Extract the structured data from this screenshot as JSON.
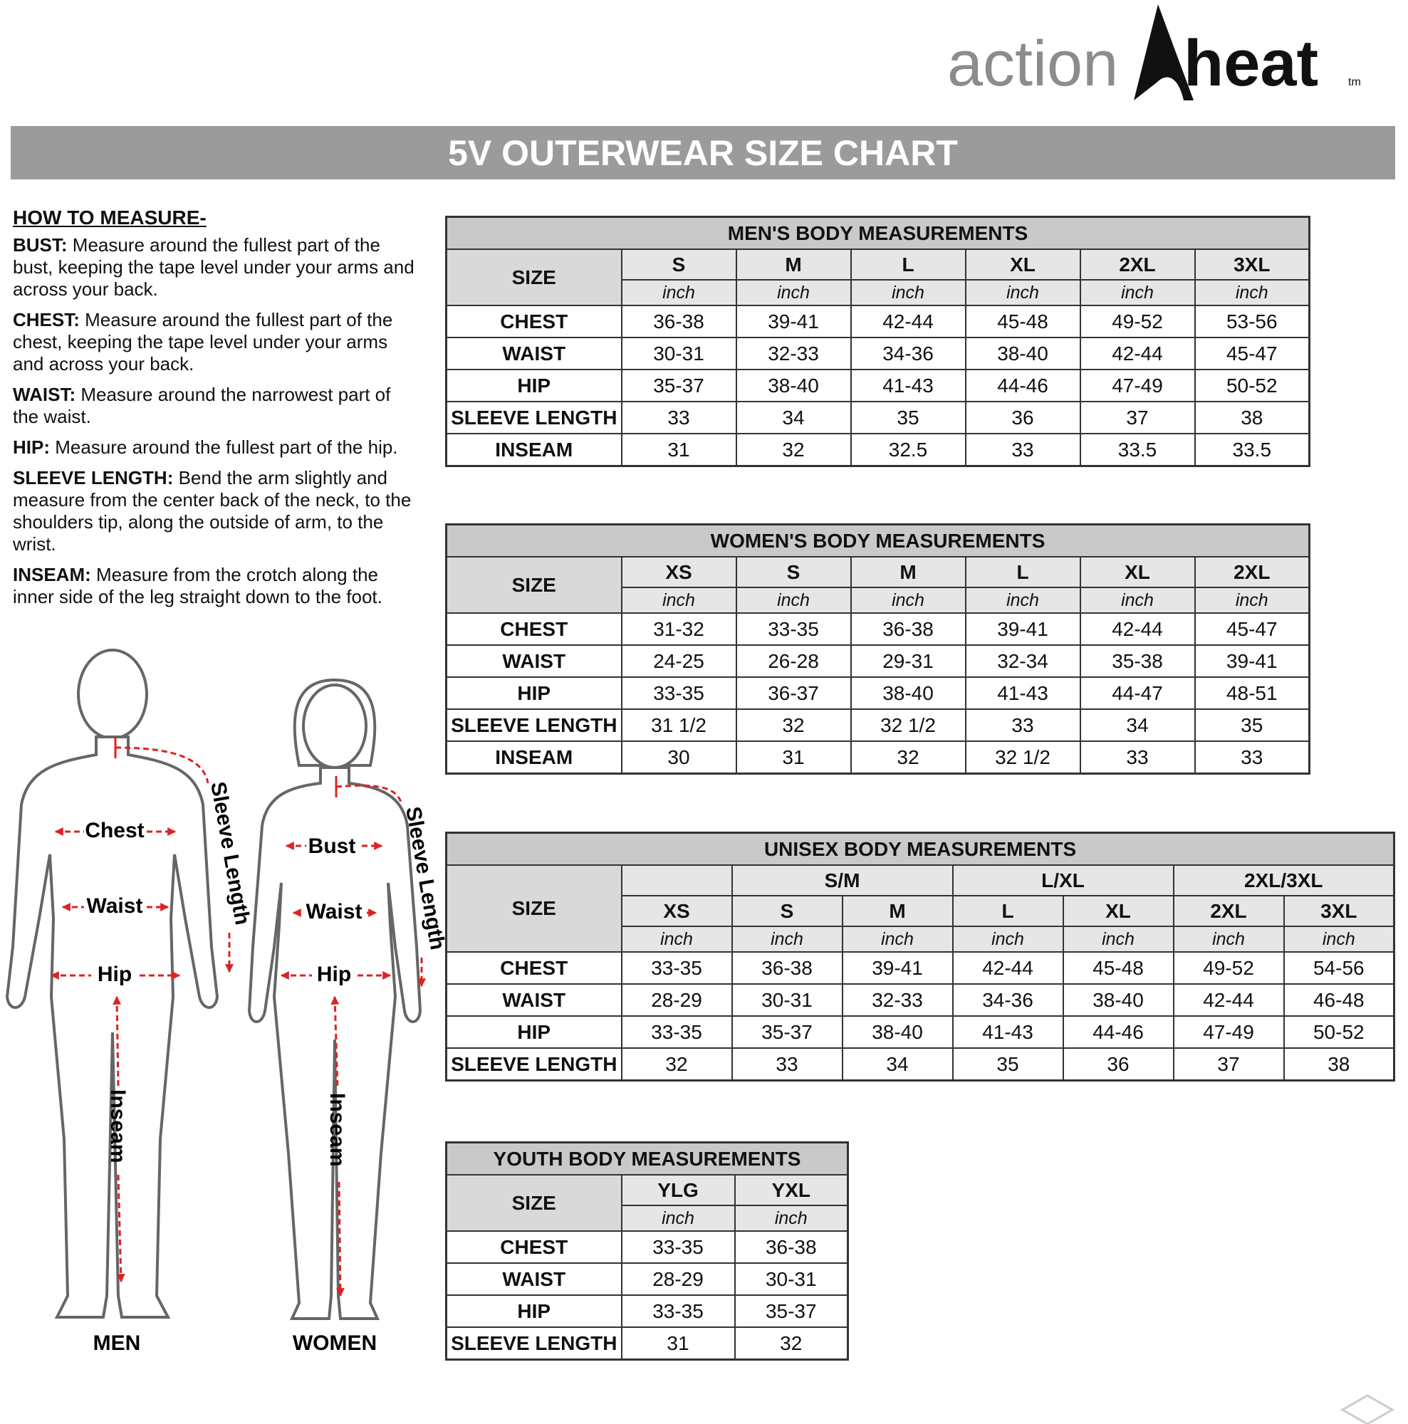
{
  "header": {
    "brand_left": "action",
    "brand_right": "heat",
    "trademark": "tm",
    "title": "5V OUTERWEAR SIZE CHART"
  },
  "measure": {
    "heading": "HOW TO MEASURE-",
    "items": [
      {
        "term": "BUST:",
        "text": "Measure around the fullest part of the bust, keeping the tape level under your arms and across your back."
      },
      {
        "term": "CHEST:",
        "text": "Measure around the fullest part of the chest, keeping the tape level under your arms and across your back."
      },
      {
        "term": "WAIST:",
        "text": "Measure around the narrowest part of the waist."
      },
      {
        "term": "HIP:",
        "text": "Measure around the fullest part of the hip."
      },
      {
        "term": "SLEEVE LENGTH:",
        "text": "Bend the arm slightly and measure from the center back of the neck, to the shoulders tip, along the outside of arm, to the wrist."
      },
      {
        "term": "INSEAM:",
        "text": "Measure from the crotch along the inner side of the leg straight down to the foot."
      }
    ]
  },
  "figures": {
    "men": {
      "caption": "MEN",
      "labels": {
        "chest": "Chest",
        "waist": "Waist",
        "hip": "Hip",
        "sleeve": "Sleeve Length",
        "inseam": "Inseam"
      }
    },
    "women": {
      "caption": "WOMEN",
      "labels": {
        "bust": "Bust",
        "waist": "Waist",
        "hip": "Hip",
        "sleeve": "Sleeve Length",
        "inseam": "Inseam"
      }
    }
  },
  "tables": {
    "men": {
      "title": "MEN'S BODY MEASUREMENTS",
      "size_label": "SIZE",
      "unit": "inch",
      "sizes": [
        "S",
        "M",
        "L",
        "XL",
        "2XL",
        "3XL"
      ],
      "rows": [
        {
          "label": "CHEST",
          "values": [
            "36-38",
            "39-41",
            "42-44",
            "45-48",
            "49-52",
            "53-56"
          ]
        },
        {
          "label": "WAIST",
          "values": [
            "30-31",
            "32-33",
            "34-36",
            "38-40",
            "42-44",
            "45-47"
          ]
        },
        {
          "label": "HIP",
          "values": [
            "35-37",
            "38-40",
            "41-43",
            "44-46",
            "47-49",
            "50-52"
          ]
        },
        {
          "label": "SLEEVE LENGTH",
          "values": [
            "33",
            "34",
            "35",
            "36",
            "37",
            "38"
          ]
        },
        {
          "label": "INSEAM",
          "values": [
            "31",
            "32",
            "32.5",
            "33",
            "33.5",
            "33.5"
          ]
        }
      ]
    },
    "women": {
      "title": "WOMEN'S BODY MEASUREMENTS",
      "size_label": "SIZE",
      "unit": "inch",
      "sizes": [
        "XS",
        "S",
        "M",
        "L",
        "XL",
        "2XL"
      ],
      "rows": [
        {
          "label": "CHEST",
          "values": [
            "31-32",
            "33-35",
            "36-38",
            "39-41",
            "42-44",
            "45-47"
          ]
        },
        {
          "label": "WAIST",
          "values": [
            "24-25",
            "26-28",
            "29-31",
            "32-34",
            "35-38",
            "39-41"
          ]
        },
        {
          "label": "HIP",
          "values": [
            "33-35",
            "36-37",
            "38-40",
            "41-43",
            "44-47",
            "48-51"
          ]
        },
        {
          "label": "SLEEVE LENGTH",
          "values": [
            "31 1/2",
            "32",
            "32 1/2",
            "33",
            "34",
            "35"
          ]
        },
        {
          "label": "INSEAM",
          "values": [
            "30",
            "31",
            "32",
            "32 1/2",
            "33",
            "33"
          ]
        }
      ]
    },
    "unisex": {
      "title": "UNISEX BODY MEASUREMENTS",
      "size_label": "SIZE",
      "unit": "inch",
      "groups": [
        {
          "label": null,
          "sizes": [
            "XS"
          ]
        },
        {
          "label": "S/M",
          "sizes": [
            "S",
            "M"
          ]
        },
        {
          "label": "L/XL",
          "sizes": [
            "L",
            "XL"
          ]
        },
        {
          "label": "2XL/3XL",
          "sizes": [
            "2XL",
            "3XL"
          ]
        }
      ],
      "rows": [
        {
          "label": "CHEST",
          "values": [
            "33-35",
            "36-38",
            "39-41",
            "42-44",
            "45-48",
            "49-52",
            "54-56"
          ]
        },
        {
          "label": "WAIST",
          "values": [
            "28-29",
            "30-31",
            "32-33",
            "34-36",
            "38-40",
            "42-44",
            "46-48"
          ]
        },
        {
          "label": "HIP",
          "values": [
            "33-35",
            "35-37",
            "38-40",
            "41-43",
            "44-46",
            "47-49",
            "50-52"
          ]
        },
        {
          "label": "SLEEVE LENGTH",
          "values": [
            "32",
            "33",
            "34",
            "35",
            "36",
            "37",
            "38"
          ]
        }
      ]
    },
    "youth": {
      "title": "YOUTH BODY MEASUREMENTS",
      "size_label": "SIZE",
      "unit": "inch",
      "sizes": [
        "YLG",
        "YXL"
      ],
      "rows": [
        {
          "label": "CHEST",
          "values": [
            "33-35",
            "36-38"
          ]
        },
        {
          "label": "WAIST",
          "values": [
            "28-29",
            "30-31"
          ]
        },
        {
          "label": "HIP",
          "values": [
            "33-35",
            "35-37"
          ]
        },
        {
          "label": "SLEEVE LENGTH",
          "values": [
            "31",
            "32"
          ]
        }
      ]
    }
  }
}
